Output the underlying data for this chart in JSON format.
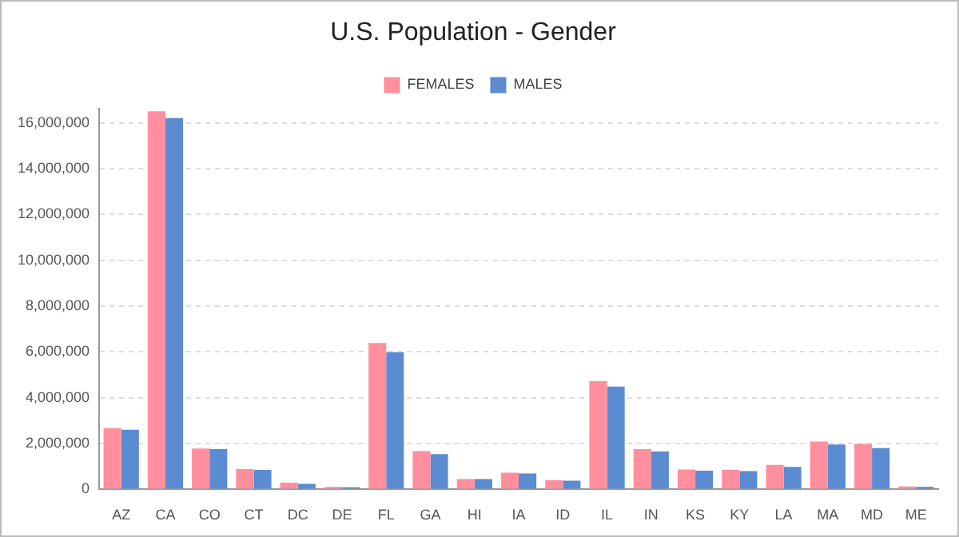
{
  "chart_data": {
    "type": "bar",
    "title": "U.S. Population - Gender",
    "categories": [
      "AZ",
      "CA",
      "CO",
      "CT",
      "DC",
      "DE",
      "FL",
      "GA",
      "HI",
      "IA",
      "ID",
      "IL",
      "IN",
      "KS",
      "KY",
      "LA",
      "MA",
      "MD",
      "ME"
    ],
    "series": [
      {
        "name": "FEMALES",
        "color": "#ff8f9e",
        "values": [
          2670000,
          16500000,
          1780000,
          890000,
          290000,
          110000,
          6390000,
          1670000,
          450000,
          730000,
          400000,
          4720000,
          1760000,
          870000,
          850000,
          1070000,
          2090000,
          1980000,
          130000
        ]
      },
      {
        "name": "MALES",
        "color": "#5b8bd0",
        "values": [
          2600000,
          16200000,
          1760000,
          850000,
          240000,
          90000,
          5990000,
          1540000,
          450000,
          690000,
          380000,
          4490000,
          1650000,
          820000,
          800000,
          980000,
          1960000,
          1800000,
          110000
        ]
      }
    ],
    "ylim": [
      0,
      16600000
    ],
    "yticks": [
      0,
      {
        "value": 2000000,
        "label": "2,000,000"
      },
      {
        "value": 4000000,
        "label": "4,000,000"
      },
      {
        "value": 6000000,
        "label": "6,000,000"
      },
      {
        "value": 8000000,
        "label": "8,000,000"
      },
      {
        "value": 10000000,
        "label": "10,000,000"
      },
      {
        "value": 12000000,
        "label": "12,000,000"
      },
      {
        "value": 14000000,
        "label": "14,000,000"
      },
      {
        "value": 16000000,
        "label": "16,000,000"
      }
    ],
    "grid": "y",
    "legend": "top"
  }
}
